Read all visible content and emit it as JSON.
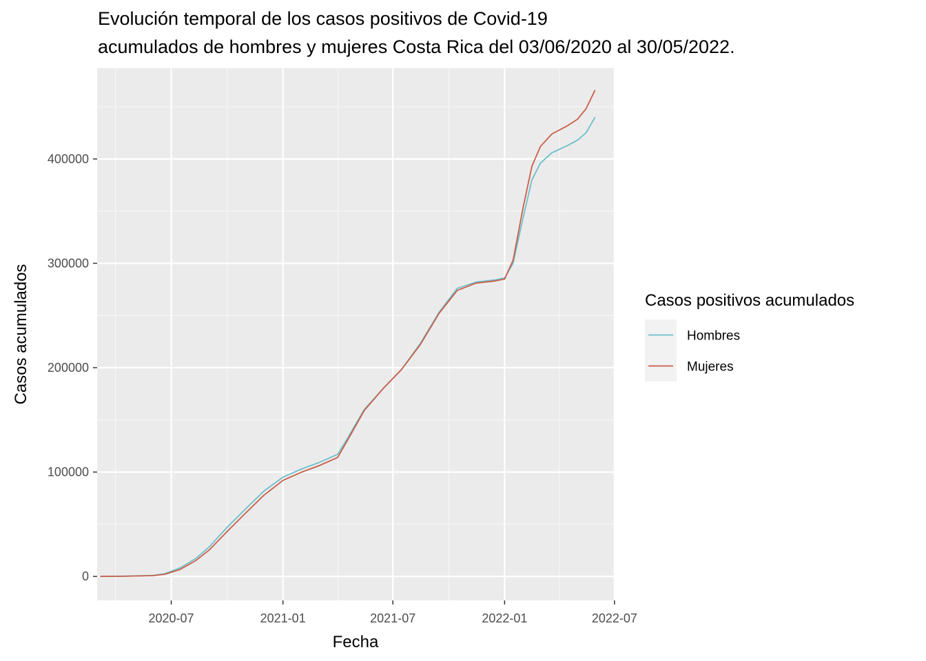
{
  "title_line1": "Evolución temporal de los casos positivos de Covid-19",
  "title_line2": "acumulados de hombres y mujeres Costa Rica del 03/06/2020 al 30/05/2022.",
  "chart_data": {
    "type": "line",
    "title": "Evolución temporal de los casos positivos de Covid-19 acumulados de hombres y mujeres Costa Rica del 03/06/2020 al 30/05/2022.",
    "xlabel": "Fecha",
    "ylabel": "Casos acumulados",
    "x_ticks": [
      "2020-07",
      "2021-01",
      "2021-07",
      "2022-01",
      "2022-07"
    ],
    "y_ticks": [
      "0",
      "100000",
      "200000",
      "300000",
      "400000"
    ],
    "xlim": [
      "2020-03-01",
      "2022-06-30"
    ],
    "ylim": [
      -23000,
      487000
    ],
    "grid": true,
    "legend_title": "Casos  positivos acumulados",
    "legend_position": "right",
    "series": [
      {
        "name": "Hombres",
        "color": "#6BBFCA",
        "points": [
          [
            "2020-03-06",
            0
          ],
          [
            "2020-04-15",
            200
          ],
          [
            "2020-05-31",
            900
          ],
          [
            "2020-06-20",
            2500
          ],
          [
            "2020-07-15",
            8000
          ],
          [
            "2020-08-10",
            17000
          ],
          [
            "2020-09-01",
            28000
          ],
          [
            "2020-10-01",
            47000
          ],
          [
            "2020-11-01",
            65000
          ],
          [
            "2020-12-01",
            82000
          ],
          [
            "2021-01-01",
            95000
          ],
          [
            "2021-02-01",
            103000
          ],
          [
            "2021-03-01",
            109000
          ],
          [
            "2021-04-01",
            117000
          ],
          [
            "2021-04-15",
            130000
          ],
          [
            "2021-05-15",
            160000
          ],
          [
            "2021-06-15",
            180000
          ],
          [
            "2021-07-15",
            198000
          ],
          [
            "2021-08-15",
            223000
          ],
          [
            "2021-09-15",
            253000
          ],
          [
            "2021-10-15",
            276000
          ],
          [
            "2021-11-15",
            282000
          ],
          [
            "2021-12-15",
            284000
          ],
          [
            "2022-01-01",
            286000
          ],
          [
            "2022-01-15",
            300000
          ],
          [
            "2022-02-01",
            345000
          ],
          [
            "2022-02-15",
            380000
          ],
          [
            "2022-03-01",
            396000
          ],
          [
            "2022-03-20",
            406000
          ],
          [
            "2022-04-15",
            413000
          ],
          [
            "2022-05-01",
            418000
          ],
          [
            "2022-05-15",
            425000
          ],
          [
            "2022-05-30",
            440000
          ]
        ]
      },
      {
        "name": "Mujeres",
        "color": "#C95D48",
        "points": [
          [
            "2020-03-06",
            0
          ],
          [
            "2020-04-15",
            150
          ],
          [
            "2020-05-31",
            700
          ],
          [
            "2020-06-20",
            2000
          ],
          [
            "2020-07-15",
            6500
          ],
          [
            "2020-08-10",
            15000
          ],
          [
            "2020-09-01",
            25000
          ],
          [
            "2020-10-01",
            43000
          ],
          [
            "2020-11-01",
            61000
          ],
          [
            "2020-12-01",
            78000
          ],
          [
            "2021-01-01",
            92000
          ],
          [
            "2021-02-01",
            100000
          ],
          [
            "2021-03-01",
            106000
          ],
          [
            "2021-04-01",
            114000
          ],
          [
            "2021-04-15",
            128000
          ],
          [
            "2021-05-15",
            159000
          ],
          [
            "2021-06-15",
            180000
          ],
          [
            "2021-07-15",
            198000
          ],
          [
            "2021-08-15",
            222000
          ],
          [
            "2021-09-15",
            252000
          ],
          [
            "2021-10-15",
            274000
          ],
          [
            "2021-11-15",
            281000
          ],
          [
            "2021-12-15",
            283000
          ],
          [
            "2022-01-01",
            285000
          ],
          [
            "2022-01-15",
            303000
          ],
          [
            "2022-02-01",
            355000
          ],
          [
            "2022-02-15",
            393000
          ],
          [
            "2022-03-01",
            412000
          ],
          [
            "2022-03-20",
            424000
          ],
          [
            "2022-04-15",
            432000
          ],
          [
            "2022-05-01",
            438000
          ],
          [
            "2022-05-15",
            448000
          ],
          [
            "2022-05-30",
            466000
          ]
        ]
      }
    ]
  }
}
